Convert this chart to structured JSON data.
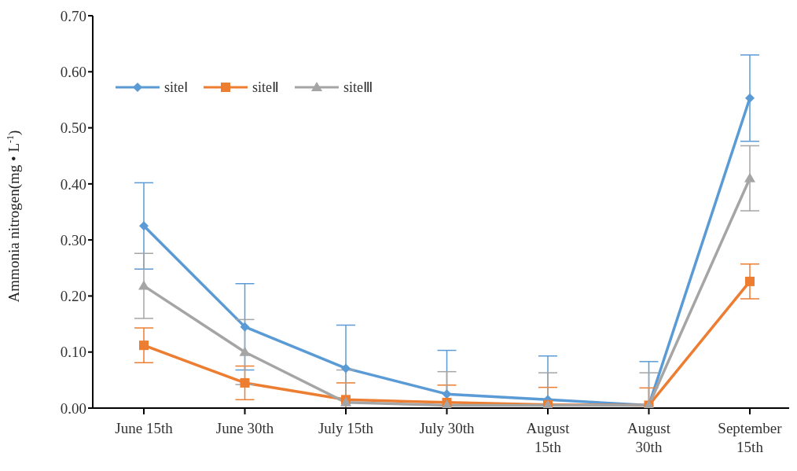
{
  "chart_data": {
    "type": "line",
    "ylabel": "Ammonia nitrogen(mg • L$^{-1}$)",
    "categories": [
      "June 15th",
      "June 30th",
      "July 15th",
      "July 30th",
      "August 15th",
      "August 30th",
      "September 15th"
    ],
    "series": [
      {
        "name": "siteⅠ",
        "color": "#5b9bd5",
        "marker": "diamond",
        "values": [
          0.325,
          0.145,
          0.071,
          0.025,
          0.015,
          0.005,
          0.553
        ],
        "errors": [
          0.077,
          0.077,
          [
            0,
            0.148
          ],
          [
            0,
            0.103
          ],
          [
            0,
            0.093
          ],
          [
            0,
            0.083
          ],
          0.077
        ]
      },
      {
        "name": "siteⅡ",
        "color": "#ed7d31",
        "marker": "square",
        "values": [
          0.112,
          0.045,
          0.015,
          0.01,
          0.006,
          0.005,
          0.226
        ],
        "errors": [
          0.031,
          0.03,
          [
            0,
            0.045
          ],
          [
            0,
            0.041
          ],
          [
            0,
            0.037
          ],
          [
            0,
            0.036
          ],
          0.031
        ]
      },
      {
        "name": "siteⅢ",
        "color": "#a5a5a5",
        "marker": "triangle",
        "values": [
          0.218,
          0.1,
          0.01,
          0.005,
          0.005,
          0.005,
          0.41
        ],
        "errors": [
          0.058,
          0.058,
          [
            0,
            0.068
          ],
          [
            0,
            0.065
          ],
          [
            0,
            0.063
          ],
          [
            0,
            0.063
          ],
          0.058
        ]
      }
    ],
    "ylim": [
      0,
      0.7
    ],
    "yticks": [
      {
        "value": 0,
        "label": "0.00"
      },
      {
        "value": 0.1,
        "label": "0.10"
      },
      {
        "value": 0.2,
        "label": "0.20"
      },
      {
        "value": 0.3,
        "label": "0.30"
      },
      {
        "value": 0.4,
        "label": "0.40"
      },
      {
        "value": 0.5,
        "label": "0.50"
      },
      {
        "value": 0.6,
        "label": "0.60"
      },
      {
        "value": 0.7,
        "label": "0.70"
      }
    ],
    "grid": false,
    "legend": "top left",
    "line_style": "solid"
  }
}
